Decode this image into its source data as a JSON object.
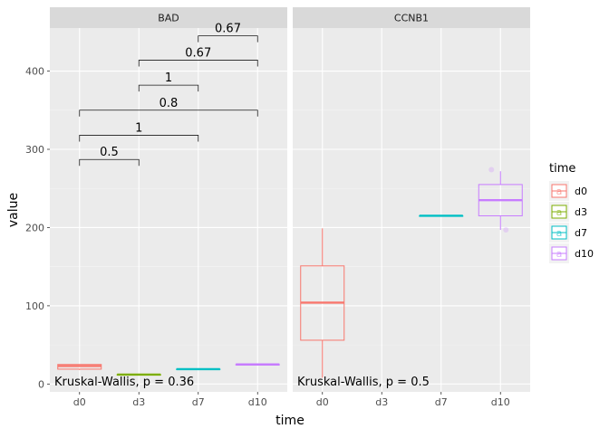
{
  "chart_data": {
    "type": "boxplot",
    "facets": [
      "BAD",
      "CCNB1"
    ],
    "categories": [
      "d0",
      "d3",
      "d7",
      "d10"
    ],
    "xlabel": "time",
    "ylabel": "value",
    "ylim": [
      -10,
      455
    ],
    "yticks": [
      0,
      100,
      200,
      300,
      400
    ],
    "grid": true,
    "legend": {
      "title": "time",
      "position": "right",
      "key_glyph": "a",
      "entries": [
        {
          "label": "d0",
          "color": "#F8766D"
        },
        {
          "label": "d3",
          "color": "#7CAE00"
        },
        {
          "label": "d7",
          "color": "#00BFC4"
        },
        {
          "label": "d10",
          "color": "#C77CFF"
        }
      ]
    },
    "panels": [
      {
        "facet": "BAD",
        "boxes": [
          {
            "category": "d0",
            "q1": 19,
            "median": 23,
            "q3": 25,
            "min": 18,
            "max": 25,
            "outliers": []
          },
          {
            "category": "d3",
            "q1": 12,
            "median": 12,
            "q3": 12,
            "min": 12,
            "max": 12,
            "outliers": []
          },
          {
            "category": "d7",
            "q1": 19,
            "median": 19,
            "q3": 19,
            "min": 19,
            "max": 19,
            "outliers": []
          },
          {
            "category": "d10",
            "q1": 25,
            "median": 25,
            "q3": 25,
            "min": 25,
            "max": 25,
            "outliers": []
          }
        ],
        "comparisons": [
          {
            "group1": "d0",
            "group2": "d3",
            "p": "0.5",
            "y": 287
          },
          {
            "group1": "d0",
            "group2": "d7",
            "p": "1",
            "y": 318
          },
          {
            "group1": "d0",
            "group2": "d10",
            "p": "0.8",
            "y": 350
          },
          {
            "group1": "d3",
            "group2": "d7",
            "p": "1",
            "y": 382
          },
          {
            "group1": "d3",
            "group2": "d10",
            "p": "0.67",
            "y": 414
          },
          {
            "group1": "d7",
            "group2": "d10",
            "p": "0.67",
            "y": 445
          }
        ],
        "test_label": "Kruskal-Wallis, p = 0.36"
      },
      {
        "facet": "CCNB1",
        "boxes": [
          {
            "category": "d0",
            "q1": 56,
            "median": 104,
            "q3": 151,
            "min": 8,
            "max": 199,
            "outliers": []
          },
          {
            "category": "d7",
            "q1": 215,
            "median": 215,
            "q3": 215,
            "min": 215,
            "max": 215,
            "outliers": []
          },
          {
            "category": "d10",
            "q1": 215,
            "median": 235,
            "q3": 255,
            "min": 197,
            "max": 272,
            "outliers": [
              274,
              197
            ]
          }
        ],
        "comparisons": [],
        "test_label": "Kruskal-Wallis, p = 0.5"
      }
    ]
  }
}
